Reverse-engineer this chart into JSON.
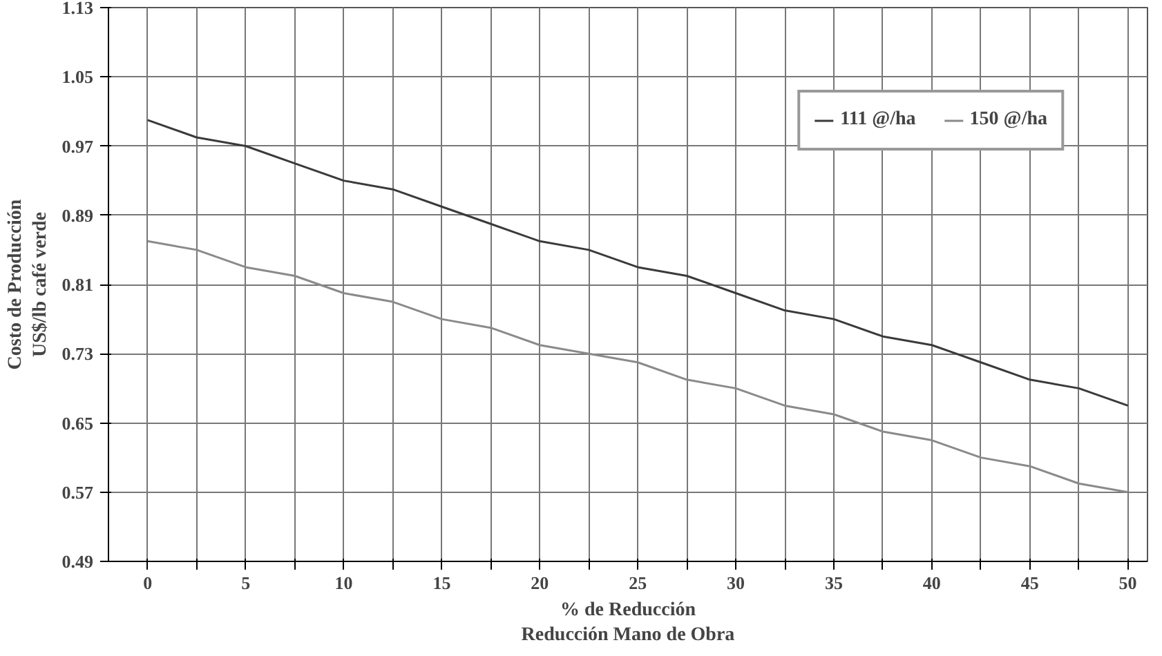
{
  "chart_data": {
    "type": "line",
    "xlabel": "% de Reducción\nReducción Mano de Obra",
    "ylabel": "Costo de Producción\nUS$/lb café verde",
    "x": [
      0,
      2.5,
      5,
      7.5,
      10,
      12.5,
      15,
      17.5,
      20,
      22.5,
      25,
      27.5,
      30,
      32.5,
      35,
      37.5,
      40,
      42.5,
      45,
      47.5,
      50
    ],
    "series": [
      {
        "name": "111 @/ha",
        "color": "#3a3a3a",
        "values": [
          1.0,
          0.98,
          0.97,
          0.95,
          0.93,
          0.92,
          0.9,
          0.88,
          0.86,
          0.85,
          0.83,
          0.82,
          0.8,
          0.78,
          0.77,
          0.75,
          0.74,
          0.72,
          0.7,
          0.69,
          0.67
        ]
      },
      {
        "name": "150 @/ha",
        "color": "#8a8a8a",
        "values": [
          0.86,
          0.85,
          0.83,
          0.82,
          0.8,
          0.79,
          0.77,
          0.76,
          0.74,
          0.73,
          0.72,
          0.7,
          0.69,
          0.67,
          0.66,
          0.64,
          0.63,
          0.61,
          0.6,
          0.58,
          0.57
        ]
      }
    ],
    "xlim": [
      -2,
      51
    ],
    "xticks": [
      0,
      {
        "value": 2.5,
        "label": null
      },
      5,
      {
        "value": 7.5,
        "label": null
      },
      10,
      {
        "value": 12.5,
        "label": null
      },
      15,
      {
        "value": 17.5,
        "label": null
      },
      20,
      {
        "value": 22.5,
        "label": null
      },
      25,
      {
        "value": 27.5,
        "label": null
      },
      30,
      {
        "value": 32.5,
        "label": null
      },
      35,
      {
        "value": 37.5,
        "label": null
      },
      40,
      {
        "value": 42.5,
        "label": null
      },
      45,
      {
        "value": 47.5,
        "label": null
      },
      50
    ],
    "ylim": [
      0.49,
      1.13
    ],
    "yticks": [
      0.49,
      0.57,
      0.65,
      0.73,
      0.81,
      0.89,
      0.97,
      1.05,
      1.13
    ],
    "grid": true,
    "legend": "top right",
    "line_style": "solid",
    "marker": "none"
  }
}
